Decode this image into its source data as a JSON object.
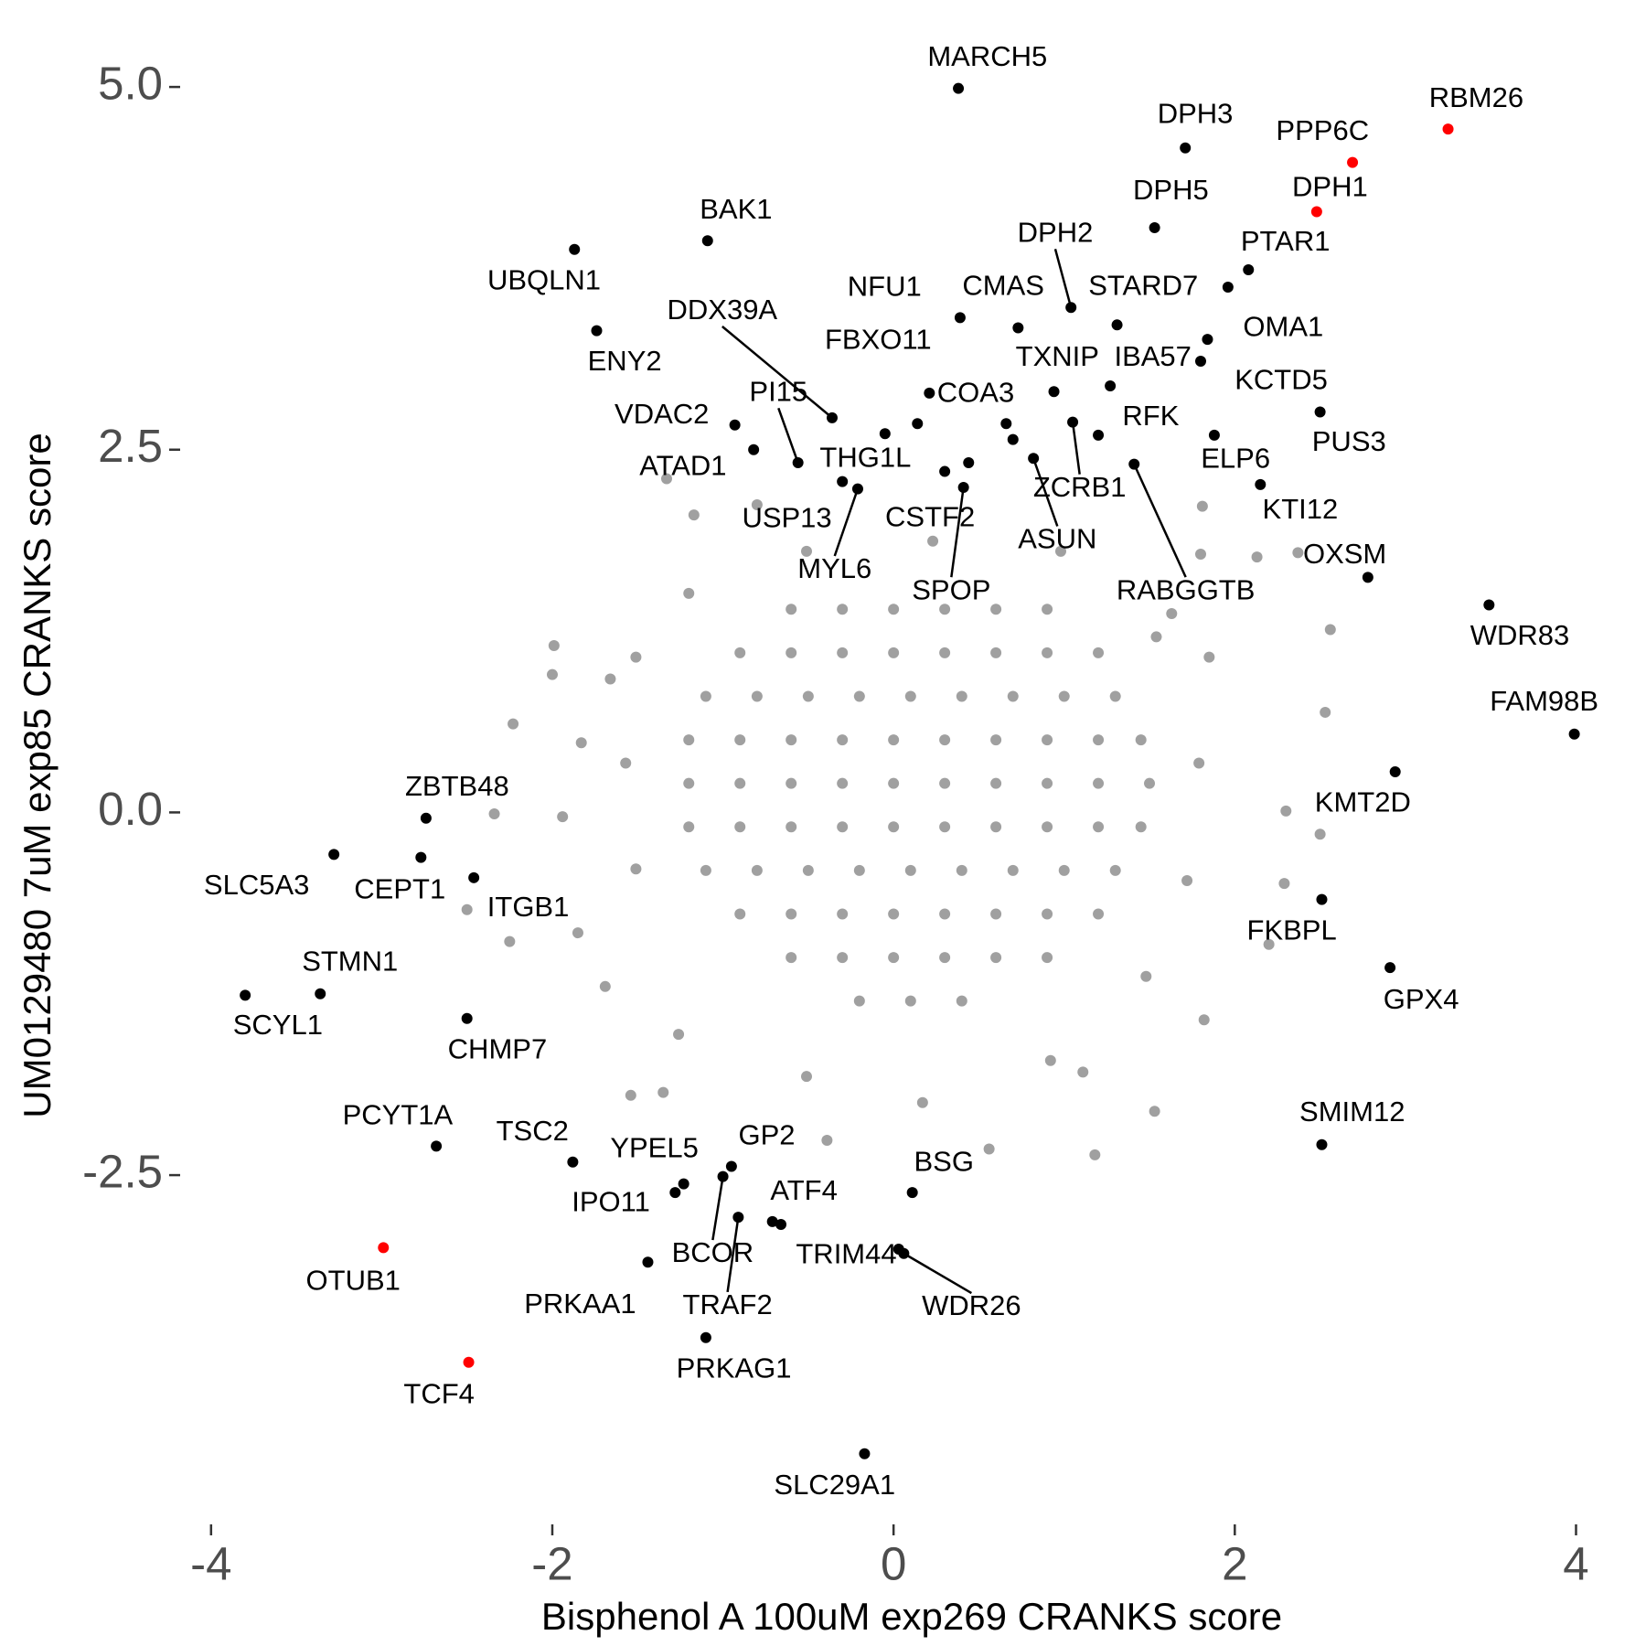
{
  "chart_data": {
    "type": "scatter",
    "xlabel": "Bisphenol A 100uM exp269 CRANKS score",
    "ylabel": "UM0129480 7uM exp85 CRANKS score",
    "xlim": [
      -4.2,
      4.2
    ],
    "ylim": [
      -4.8,
      5.3
    ],
    "xticks": [
      -4,
      -2,
      0,
      2,
      4
    ],
    "yticks": [
      {
        "value": 5.0,
        "label": "5.0"
      },
      2.5,
      {
        "value": 0.0,
        "label": "0.0"
      },
      -2.5
    ],
    "grid": false,
    "series": [
      {
        "color": "#A0A0A0",
        "x": [
          -1.99,
          -2.0,
          -2.23,
          -2.34,
          -2.5,
          -2.25,
          -1.17,
          -1.33,
          -0.8,
          1.81,
          1.8,
          2.13,
          2.37,
          2.56,
          2.53,
          2.3,
          2.5,
          2.29,
          2.2,
          1.82,
          1.53,
          1.18,
          1.11,
          0.56,
          -0.39,
          -1.35,
          -1.54,
          1.63,
          1.85,
          -1.66,
          -1.83,
          -1.94,
          -1.85,
          -1.69,
          -1.26,
          -0.51,
          0.17,
          0.92,
          1.48,
          1.72,
          1.79,
          1.54,
          0.98,
          0.23,
          -0.51,
          -1.2,
          -1.51,
          -1.57,
          -1.51,
          -0.6,
          -0.3,
          0,
          0.3,
          0.6,
          0.9,
          -0.9,
          -0.6,
          -0.3,
          0,
          0.3,
          0.6,
          0.9,
          1.2,
          -1.1,
          -0.8,
          -0.5,
          -0.2,
          0.1,
          0.4,
          0.7,
          1.0,
          1.3,
          -1.2,
          -0.9,
          -0.6,
          -0.3,
          0,
          0.3,
          0.6,
          0.9,
          1.2,
          1.45,
          -1.2,
          -0.9,
          -0.6,
          -0.3,
          0,
          0.3,
          0.6,
          0.9,
          1.2,
          1.5,
          -1.2,
          -0.9,
          -0.6,
          -0.3,
          0,
          0.3,
          0.6,
          0.9,
          1.2,
          1.45,
          -1.1,
          -0.8,
          -0.5,
          -0.2,
          0.1,
          0.4,
          0.7,
          1.0,
          1.3,
          -0.9,
          -0.6,
          -0.3,
          0,
          0.3,
          0.6,
          0.9,
          1.2,
          -0.6,
          -0.3,
          0,
          0.3,
          0.6,
          0.9,
          -0.2,
          0.1,
          0.4
        ],
        "y": [
          1.15,
          0.95,
          0.61,
          -0.01,
          -0.67,
          -0.89,
          2.05,
          2.3,
          2.12,
          2.11,
          1.78,
          1.76,
          1.79,
          1.26,
          0.69,
          0.01,
          -0.15,
          -0.49,
          -0.91,
          -1.43,
          -2.06,
          -2.36,
          -1.79,
          -2.32,
          -2.26,
          -1.93,
          -1.95,
          1.37,
          1.07,
          0.92,
          0.48,
          -0.03,
          -0.83,
          -1.2,
          -1.53,
          -1.82,
          -2.0,
          -1.71,
          -1.13,
          -0.47,
          0.34,
          1.21,
          1.8,
          1.87,
          1.8,
          1.51,
          1.07,
          0.34,
          -0.39,
          1.4,
          1.4,
          1.4,
          1.4,
          1.4,
          1.4,
          1.1,
          1.1,
          1.1,
          1.1,
          1.1,
          1.1,
          1.1,
          1.1,
          0.8,
          0.8,
          0.8,
          0.8,
          0.8,
          0.8,
          0.8,
          0.8,
          0.8,
          0.5,
          0.5,
          0.5,
          0.5,
          0.5,
          0.5,
          0.5,
          0.5,
          0.5,
          0.5,
          0.2,
          0.2,
          0.2,
          0.2,
          0.2,
          0.2,
          0.2,
          0.2,
          0.2,
          0.2,
          -0.1,
          -0.1,
          -0.1,
          -0.1,
          -0.1,
          -0.1,
          -0.1,
          -0.1,
          -0.1,
          -0.1,
          -0.4,
          -0.4,
          -0.4,
          -0.4,
          -0.4,
          -0.4,
          -0.4,
          -0.4,
          -0.4,
          -0.7,
          -0.7,
          -0.7,
          -0.7,
          -0.7,
          -0.7,
          -0.7,
          -0.7,
          -1.0,
          -1.0,
          -1.0,
          -1.0,
          -1.0,
          -1.0,
          -1.3,
          -1.3,
          -1.3
        ]
      },
      {
        "color": "#000000",
        "x": [
          0.38,
          1.71,
          1.53,
          -1.09,
          -1.87,
          2.08,
          1.96,
          1.04,
          0.39,
          0.73,
          1.31,
          1.84,
          1.27,
          1.8,
          -1.74,
          -0.36,
          0.14,
          0.21,
          0.94,
          2.5,
          1.88,
          1.2,
          2.15,
          2.78,
          3.49,
          3.99,
          2.94,
          2.51,
          2.91,
          2.51,
          -0.93,
          -0.82,
          -0.56,
          -0.05,
          -0.3,
          -0.21,
          0.3,
          0.41,
          1.05,
          0.82,
          1.41,
          0.44,
          0.66,
          0.7,
          -2.74,
          -3.28,
          -2.77,
          -2.46,
          -3.36,
          -3.8,
          -2.5,
          -2.68,
          -1.88,
          -1.23,
          -1.28,
          -0.95,
          -1.0,
          -0.91,
          -0.71,
          -0.66,
          0.11,
          0.03,
          0.06,
          -1.44,
          -1.1,
          -0.17
        ],
        "y": [
          4.99,
          4.58,
          4.03,
          3.94,
          3.88,
          3.74,
          3.62,
          3.48,
          3.41,
          3.34,
          3.36,
          3.26,
          2.94,
          3.11,
          3.32,
          2.72,
          2.68,
          2.89,
          2.9,
          2.76,
          2.6,
          2.6,
          2.26,
          1.62,
          1.43,
          0.54,
          0.28,
          -0.6,
          -1.07,
          -2.29,
          2.67,
          2.5,
          2.41,
          2.61,
          2.28,
          2.23,
          2.35,
          2.24,
          2.69,
          2.44,
          2.4,
          2.41,
          2.68,
          2.57,
          -0.04,
          -0.29,
          -0.31,
          -0.45,
          -1.25,
          -1.26,
          -1.42,
          -2.3,
          -2.41,
          -2.56,
          -2.62,
          -2.44,
          -2.51,
          -2.79,
          -2.82,
          -2.84,
          -2.62,
          -3.01,
          -3.04,
          -3.1,
          -3.62,
          -4.42
        ],
        "labels": [
          "MARCH5",
          "DPH3",
          "DPH5",
          "BAK1",
          "UBQLN1",
          "PTAR1",
          "STARD7",
          "DPH2",
          "NFU1",
          "CMAS",
          "TXNIP",
          "OMA1",
          "IBA57",
          "KCTD5",
          "ENY2",
          "DDX39A",
          "FBXO11",
          "COA3",
          null,
          "PUS3",
          "ELP6",
          "RFK",
          "KTI12",
          "OXSM",
          "WDR83",
          "FAM98B",
          "KMT2D",
          "FKBPL",
          "GPX4",
          "SMIM12",
          "VDAC2",
          "ATAD1",
          "PI15",
          "THG1L",
          "USP13",
          "MYL6",
          "CSTF2",
          "SPOP",
          "ZCRB1",
          "ASUN",
          "RABGGTB",
          null,
          null,
          null,
          "ZBTB48",
          "SLC5A3",
          "CEPT1",
          "ITGB1",
          "STMN1",
          "SCYL1",
          "CHMP7",
          "PCYT1A",
          "TSC2",
          "YPEL5",
          "IPO11",
          "GP2",
          "BCOR",
          "TRAF2",
          "ATF4",
          null,
          "BSG",
          "TRIM44",
          "WDR26",
          "PRKAA1",
          "PRKAG1",
          "SLC29A1"
        ]
      },
      {
        "color": "#FF0000",
        "x": [
          3.25,
          2.69,
          2.48,
          -2.99,
          -2.49
        ],
        "y": [
          4.71,
          4.48,
          4.14,
          -3.0,
          -3.79
        ],
        "labels": [
          "RBM26",
          "PPP6C",
          "DPH1",
          "OTUB1",
          "TCF4"
        ]
      }
    ]
  }
}
